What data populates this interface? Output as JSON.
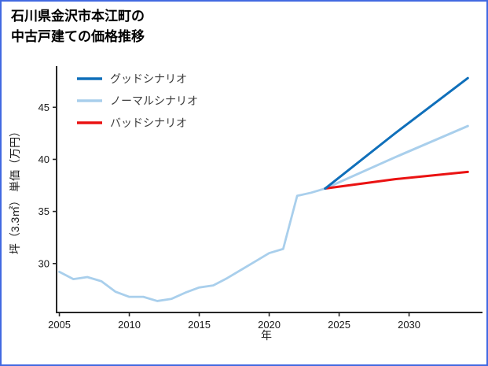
{
  "title": {
    "line1": "石川県金沢市本江町の",
    "line2": "中古戸建ての価格推移"
  },
  "colors": {
    "frame_border": "#4169e1",
    "axis": "#262626",
    "good_scenario": "#0f6fba",
    "normal_scenario": "#a9cfec",
    "bad_scenario": "#ea1212"
  },
  "chart_data": {
    "type": "line",
    "title": "石川県金沢市本江町の中古戸建ての価格推移",
    "xlabel": "年",
    "ylabel": "坪（3.3㎡） 単価（万円）",
    "xlim": [
      2004.8,
      2034.8
    ],
    "ylim": [
      25.3,
      48.8
    ],
    "x_ticks": [
      2005,
      2010,
      2015,
      2020,
      2025,
      2030
    ],
    "y_ticks": [
      30,
      35,
      40,
      45
    ],
    "grid": false,
    "legend_position": "upper-left",
    "series": [
      {
        "id": "history",
        "name": "",
        "in_legend": false,
        "color": "#a9cfec",
        "width": 2.8,
        "x": [
          2005,
          2006,
          2007,
          2008,
          2009,
          2010,
          2011,
          2012,
          2013,
          2014,
          2015,
          2016,
          2017,
          2018,
          2019,
          2020,
          2021,
          2022,
          2023,
          2024
        ],
        "values": [
          29.2,
          28.5,
          28.7,
          28.3,
          27.3,
          26.8,
          26.8,
          26.4,
          26.6,
          27.2,
          27.7,
          27.9,
          28.6,
          29.4,
          30.2,
          31.0,
          31.4,
          36.5,
          36.8,
          37.2
        ]
      },
      {
        "id": "normal-scenario",
        "name": "ノーマルシナリオ",
        "in_legend": true,
        "legend_index": 1,
        "color": "#a9cfec",
        "width": 3,
        "x": [
          2024,
          2029,
          2034.2
        ],
        "values": [
          37.2,
          40.2,
          43.2
        ]
      },
      {
        "id": "bad-scenario",
        "name": "バッドシナリオ",
        "in_legend": true,
        "legend_index": 2,
        "color": "#ea1212",
        "width": 3,
        "x": [
          2024,
          2029,
          2034.2
        ],
        "values": [
          37.2,
          38.1,
          38.8
        ]
      },
      {
        "id": "good-scenario",
        "name": "グッドシナリオ",
        "in_legend": true,
        "legend_index": 0,
        "color": "#0f6fba",
        "width": 3,
        "x": [
          2024,
          2029,
          2034.2
        ],
        "values": [
          37.2,
          42.5,
          47.8
        ]
      }
    ]
  }
}
